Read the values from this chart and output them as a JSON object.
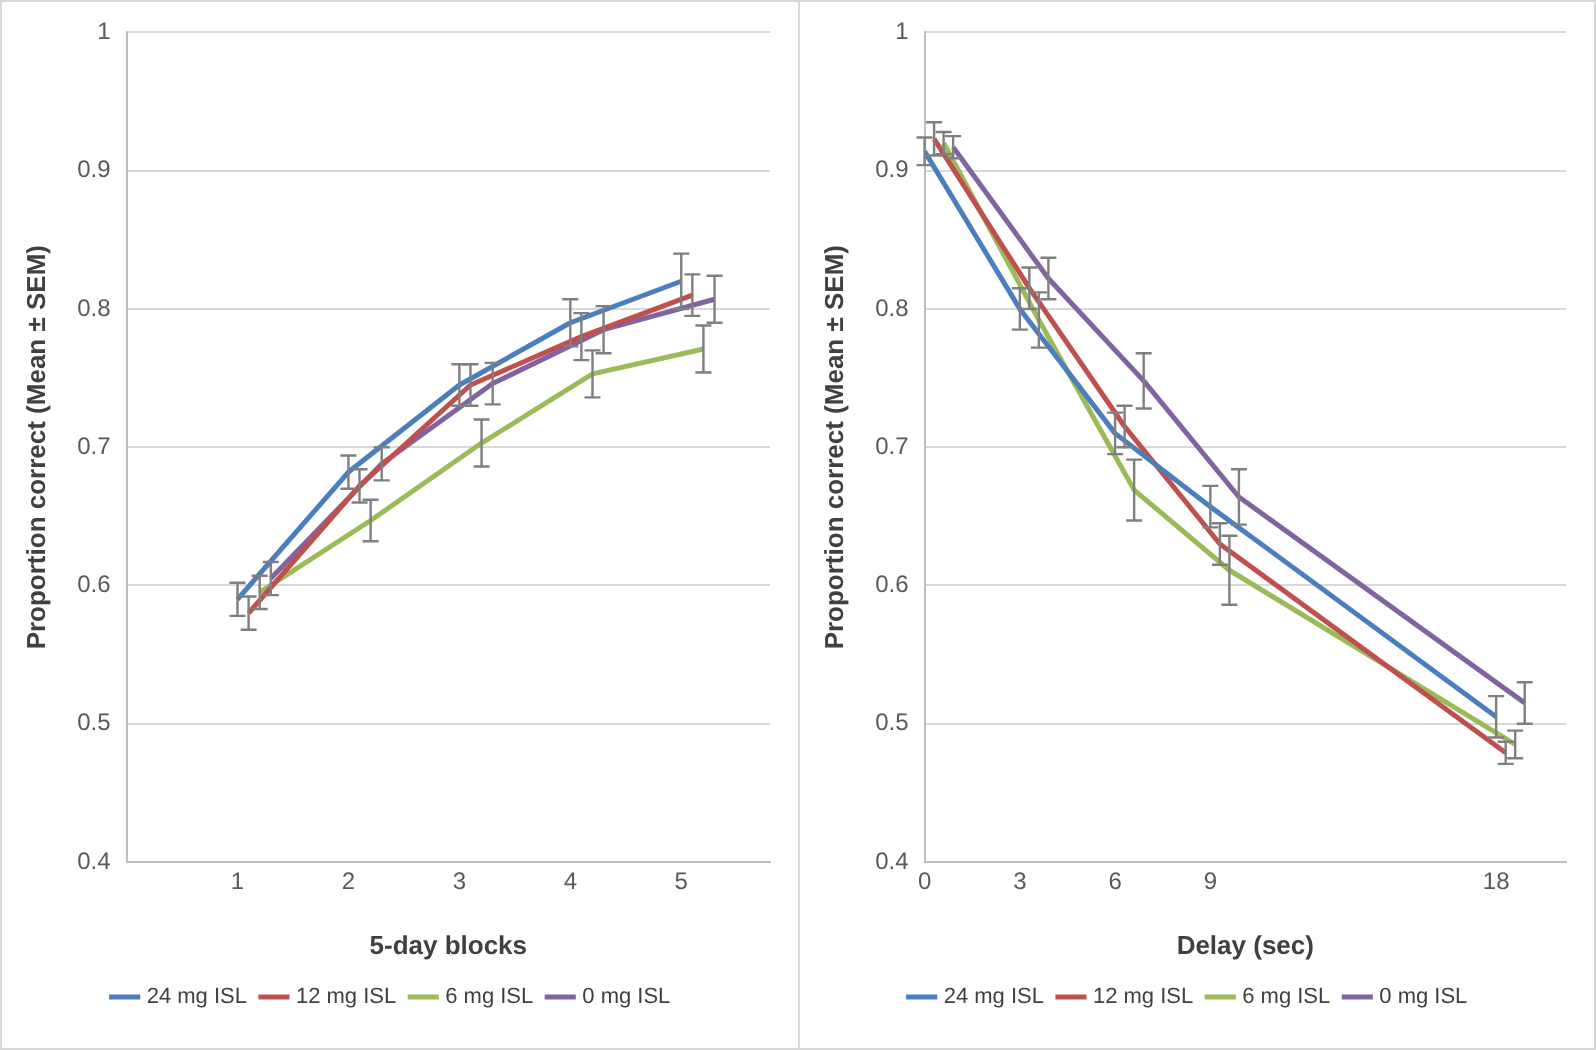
{
  "chart_data": [
    {
      "type": "line",
      "xlabel": "5-day blocks",
      "ylabel": "Proportion correct (Mean ± SEM)",
      "xlim": [
        0,
        5.8
      ],
      "xticks": [
        1,
        2,
        3,
        4,
        5
      ],
      "ylim": [
        0.4,
        1
      ],
      "yticks": [
        0.4,
        0.5,
        0.6,
        0.7,
        0.8,
        0.9,
        1
      ],
      "grid": "y",
      "legend": "bottom",
      "marker": "none",
      "line_style": "solid",
      "series": [
        {
          "name": "24 mg ISL",
          "color": "#4a7ebf",
          "x": [
            1,
            2,
            3,
            4,
            5
          ],
          "values": [
            0.59,
            0.682,
            0.745,
            0.79,
            0.82
          ],
          "errors": [
            0.012,
            0.012,
            0.015,
            0.017,
            0.02
          ]
        },
        {
          "name": "12 mg ISL",
          "color": "#c0504d",
          "x": [
            1.1,
            2.1,
            3.1,
            4.1,
            5.1
          ],
          "values": [
            0.58,
            0.672,
            0.745,
            0.78,
            0.81
          ],
          "errors": [
            0.012,
            0.012,
            0.015,
            0.017,
            0.015
          ]
        },
        {
          "name": "6 mg ISL",
          "color": "#9bbb59",
          "x": [
            1.2,
            2.2,
            3.2,
            4.2,
            5.2
          ],
          "values": [
            0.595,
            0.647,
            0.703,
            0.753,
            0.771
          ],
          "errors": [
            0.012,
            0.015,
            0.017,
            0.017,
            0.017
          ]
        },
        {
          "name": "0 mg ISL",
          "color": "#8064a2",
          "x": [
            1.3,
            2.3,
            3.3,
            4.3,
            5.3
          ],
          "values": [
            0.605,
            0.688,
            0.746,
            0.785,
            0.807
          ],
          "errors": [
            0.012,
            0.012,
            0.015,
            0.017,
            0.017
          ]
        }
      ]
    },
    {
      "type": "line",
      "xlabel": "Delay (sec)",
      "ylabel": "Proportion correct (Mean ± SEM)",
      "xlim": [
        0,
        20.2
      ],
      "xticks": [
        0,
        3,
        6,
        9,
        18
      ],
      "ylim": [
        0.4,
        1
      ],
      "yticks": [
        0.4,
        0.5,
        0.6,
        0.7,
        0.8,
        0.9,
        1
      ],
      "grid": "y",
      "legend": "bottom",
      "marker": "none",
      "line_style": "solid",
      "series": [
        {
          "name": "24 mg ISL",
          "color": "#4a7ebf",
          "x": [
            0,
            3,
            6,
            9,
            18
          ],
          "values": [
            0.914,
            0.8,
            0.71,
            0.657,
            0.505
          ],
          "errors": [
            0.01,
            0.015,
            0.015,
            0.015,
            0.015
          ]
        },
        {
          "name": "12 mg ISL",
          "color": "#c0504d",
          "x": [
            0.3,
            3.3,
            6.3,
            9.3,
            18.3
          ],
          "values": [
            0.923,
            0.815,
            0.715,
            0.63,
            0.479
          ],
          "errors": [
            0.012,
            0.015,
            0.015,
            0.015,
            0.008
          ]
        },
        {
          "name": "6 mg ISL",
          "color": "#9bbb59",
          "x": [
            0.6,
            3.6,
            6.6,
            9.6,
            18.6
          ],
          "values": [
            0.92,
            0.792,
            0.669,
            0.611,
            0.485
          ],
          "errors": [
            0.008,
            0.02,
            0.022,
            0.025,
            0.01
          ]
        },
        {
          "name": "0 mg ISL",
          "color": "#8064a2",
          "x": [
            0.9,
            3.9,
            6.9,
            9.9,
            18.9
          ],
          "values": [
            0.917,
            0.822,
            0.748,
            0.664,
            0.515
          ],
          "errors": [
            0.008,
            0.015,
            0.02,
            0.02,
            0.015
          ]
        }
      ]
    }
  ]
}
